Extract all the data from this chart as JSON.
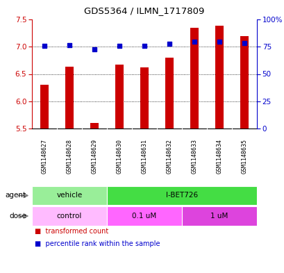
{
  "title": "GDS5364 / ILMN_1717809",
  "samples": [
    "GSM1148627",
    "GSM1148628",
    "GSM1148629",
    "GSM1148630",
    "GSM1148631",
    "GSM1148632",
    "GSM1148633",
    "GSM1148634",
    "GSM1148635"
  ],
  "bar_values": [
    6.3,
    6.63,
    5.6,
    6.67,
    6.62,
    6.8,
    7.35,
    7.38,
    7.2
  ],
  "dot_values": [
    7.02,
    7.03,
    6.95,
    7.02,
    7.02,
    7.05,
    7.09,
    7.09,
    7.07
  ],
  "bar_color": "#cc0000",
  "dot_color": "#0000cc",
  "ylim_left": [
    5.5,
    7.5
  ],
  "ylim_right": [
    0,
    100
  ],
  "yticks_left": [
    5.5,
    6.0,
    6.5,
    7.0,
    7.5
  ],
  "yticks_right": [
    0,
    25,
    50,
    75,
    100
  ],
  "ytick_labels_right": [
    "0",
    "25",
    "50",
    "75",
    "100%"
  ],
  "gridlines": [
    6.0,
    6.5,
    7.0
  ],
  "agent_groups": [
    {
      "label": "vehicle",
      "start": 0,
      "end": 3,
      "color": "#99ee99"
    },
    {
      "label": "I-BET726",
      "start": 3,
      "end": 9,
      "color": "#44dd44"
    }
  ],
  "dose_groups": [
    {
      "label": "control",
      "start": 0,
      "end": 3,
      "color": "#ffbbff"
    },
    {
      "label": "0.1 uM",
      "start": 3,
      "end": 6,
      "color": "#ff66ff"
    },
    {
      "label": "1 uM",
      "start": 6,
      "end": 9,
      "color": "#dd44dd"
    }
  ],
  "legend_bar_label": "transformed count",
  "legend_dot_label": "percentile rank within the sample",
  "background_color": "#ffffff",
  "sample_bg_color": "#cccccc",
  "left_axis_color": "#cc0000",
  "right_axis_color": "#0000cc",
  "bar_width": 0.35
}
